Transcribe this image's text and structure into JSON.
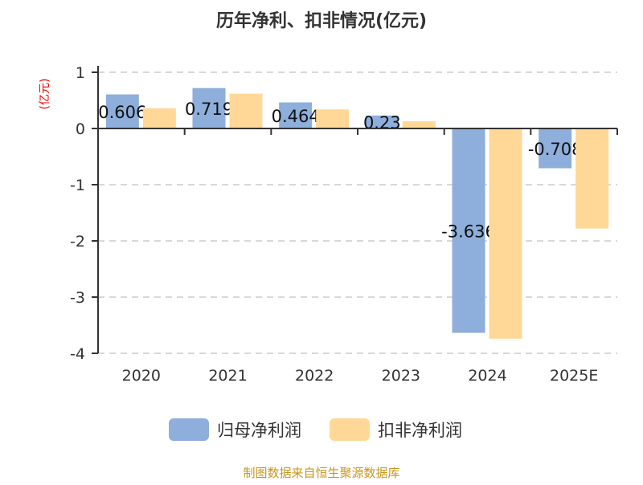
{
  "chart_data": {
    "type": "bar",
    "title": "历年净利、扣非情况(亿元)",
    "ylabel": "(亿元)",
    "categories": [
      "2020",
      "2021",
      "2022",
      "2023",
      "2024",
      "2025E"
    ],
    "series": [
      {
        "name": "归母净利润",
        "color": "#8eaedb",
        "values": [
          0.606,
          0.719,
          0.464,
          0.23,
          -3.636,
          -0.708
        ],
        "labels": [
          "0.606",
          "0.719",
          "0.464",
          "0.23",
          "-3.636",
          "-0.708"
        ]
      },
      {
        "name": "扣非净利润",
        "color": "#ffd898",
        "values": [
          0.36,
          0.62,
          0.34,
          0.13,
          -3.74,
          -1.78
        ]
      }
    ],
    "ylim": [
      -4,
      1
    ],
    "yticks": [
      "1",
      "0",
      "-1",
      "-2",
      "-3",
      "-4"
    ],
    "grid": true,
    "legend_position": "bottom",
    "source": "制图数据来自恒生聚源数据库"
  }
}
